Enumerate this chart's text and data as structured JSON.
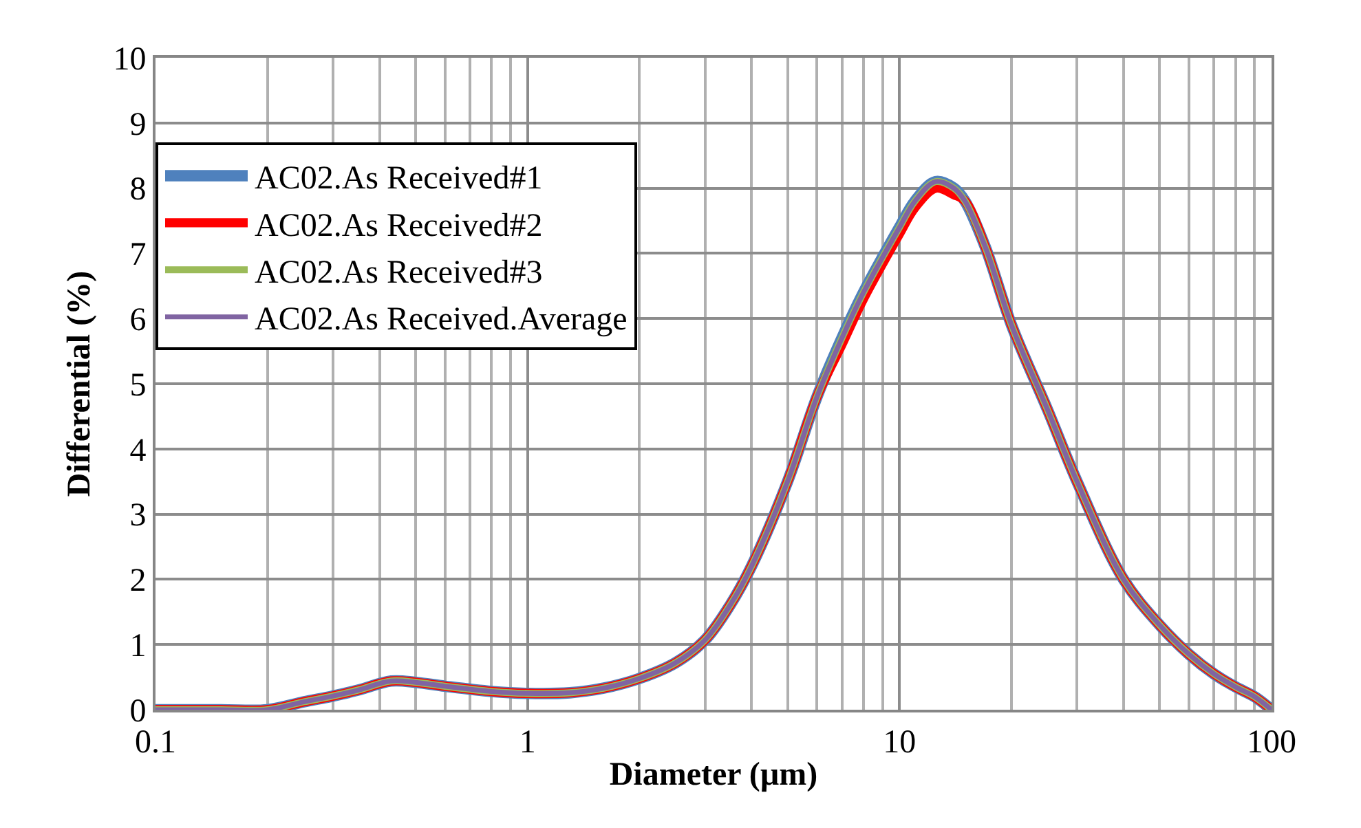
{
  "chart_data": {
    "type": "line",
    "xlabel": "Diameter (µm)",
    "ylabel": "Differential (%)",
    "log": "x",
    "xlim": [
      0.1,
      100
    ],
    "xticks": [
      0.1,
      1,
      10,
      100
    ],
    "ylim": [
      0,
      10
    ],
    "yticks": [
      0,
      1,
      2,
      3,
      4,
      5,
      6,
      7,
      8,
      9,
      10
    ],
    "grid": true,
    "legend": "top left",
    "marker": "none",
    "line_style": "solid",
    "x": [
      0.1,
      0.15,
      0.2,
      0.25,
      0.3,
      0.35,
      0.43,
      0.5,
      0.6,
      0.8,
      1,
      1.3,
      1.6,
      2,
      2.5,
      3,
      3.5,
      4,
      5,
      6,
      7,
      8,
      10,
      11,
      12.5,
      14,
      15,
      17,
      20,
      25,
      30,
      40,
      50,
      60,
      70,
      80,
      90,
      100
    ],
    "series": [
      {
        "name": "AC02.As Received#1",
        "color": "#4f81bd",
        "values": [
          0,
          0,
          0,
          0.12,
          0.21,
          0.3,
          0.44,
          0.42,
          0.36,
          0.28,
          0.25,
          0.26,
          0.33,
          0.48,
          0.72,
          1.07,
          1.6,
          2.2,
          3.5,
          4.8,
          5.7,
          6.4,
          7.4,
          7.8,
          8.1,
          8.0,
          7.8,
          7.1,
          5.9,
          4.6,
          3.5,
          2.0,
          1.3,
          0.85,
          0.55,
          0.35,
          0.2,
          0
        ]
      },
      {
        "name": "AC02.As Received#2",
        "color": "#ff0000",
        "values": [
          0,
          0,
          0,
          0.12,
          0.21,
          0.3,
          0.44,
          0.42,
          0.36,
          0.28,
          0.25,
          0.26,
          0.33,
          0.48,
          0.72,
          1.07,
          1.6,
          2.2,
          3.5,
          4.8,
          5.6,
          6.3,
          7.3,
          7.7,
          8.0,
          7.9,
          7.8,
          7.1,
          5.9,
          4.6,
          3.5,
          2.0,
          1.3,
          0.85,
          0.55,
          0.35,
          0.2,
          0
        ]
      },
      {
        "name": "AC02.As Received#3",
        "color": "#9bbb59",
        "values": [
          0,
          0,
          0,
          0.12,
          0.21,
          0.3,
          0.44,
          0.42,
          0.36,
          0.28,
          0.25,
          0.26,
          0.33,
          0.48,
          0.72,
          1.07,
          1.6,
          2.2,
          3.5,
          4.8,
          5.7,
          6.4,
          7.4,
          7.8,
          8.1,
          8.0,
          7.8,
          7.1,
          5.9,
          4.6,
          3.5,
          2.0,
          1.3,
          0.85,
          0.55,
          0.35,
          0.2,
          0
        ]
      },
      {
        "name": "AC02.As Received.Average",
        "color": "#8064a2",
        "values": [
          0,
          0,
          0,
          0.12,
          0.21,
          0.3,
          0.44,
          0.42,
          0.36,
          0.28,
          0.25,
          0.26,
          0.33,
          0.48,
          0.72,
          1.07,
          1.6,
          2.2,
          3.5,
          4.8,
          5.7,
          6.4,
          7.4,
          7.8,
          8.1,
          8.0,
          7.8,
          7.1,
          5.9,
          4.6,
          3.5,
          2.0,
          1.3,
          0.85,
          0.55,
          0.35,
          0.2,
          0
        ]
      }
    ]
  }
}
